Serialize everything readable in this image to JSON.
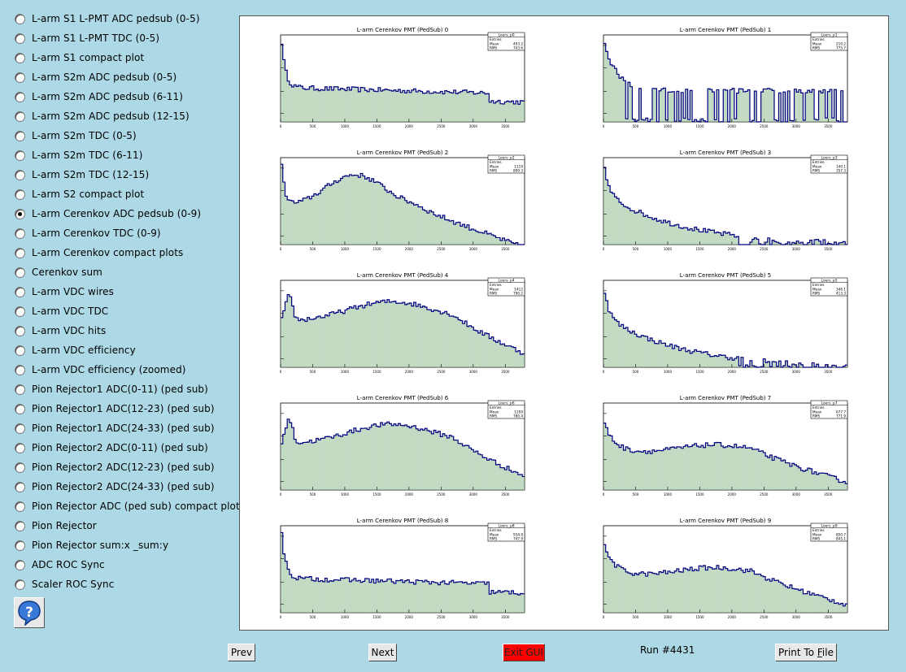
{
  "sidebar": {
    "items": [
      {
        "label": "L-arm S1 L-PMT ADC pedsub (0-5)",
        "checked": false
      },
      {
        "label": "L-arm S1 L-PMT TDC (0-5)",
        "checked": false
      },
      {
        "label": "L-arm S1 compact plot",
        "checked": false
      },
      {
        "label": "L-arm S2m ADC pedsub (0-5)",
        "checked": false
      },
      {
        "label": "L-arm S2m ADC pedsub (6-11)",
        "checked": false
      },
      {
        "label": "L-arm S2m ADC pedsub (12-15)",
        "checked": false
      },
      {
        "label": "L-arm S2m TDC (0-5)",
        "checked": false
      },
      {
        "label": "L-arm S2m TDC (6-11)",
        "checked": false
      },
      {
        "label": "L-arm S2m TDC (12-15)",
        "checked": false
      },
      {
        "label": "L-arm S2 compact plot",
        "checked": false
      },
      {
        "label": "L-arm Cerenkov ADC pedsub (0-9)",
        "checked": true
      },
      {
        "label": "L-arm Cerenkov TDC (0-9)",
        "checked": false
      },
      {
        "label": "L-arm Cerenkov compact plots",
        "checked": false
      },
      {
        "label": "Cerenkov sum",
        "checked": false
      },
      {
        "label": "L-arm VDC wires",
        "checked": false
      },
      {
        "label": "L-arm VDC TDC",
        "checked": false
      },
      {
        "label": "L-arm VDC hits",
        "checked": false
      },
      {
        "label": "L-arm VDC efficiency",
        "checked": false
      },
      {
        "label": "L-arm VDC efficiency (zoomed)",
        "checked": false
      },
      {
        "label": "Pion Rejector1 ADC(0-11) (ped sub)",
        "checked": false
      },
      {
        "label": "Pion Rejector1 ADC(12-23) (ped sub)",
        "checked": false
      },
      {
        "label": "Pion Rejector1 ADC(24-33) (ped sub)",
        "checked": false
      },
      {
        "label": "Pion Rejector2 ADC(0-11) (ped sub)",
        "checked": false
      },
      {
        "label": "Pion Rejector2 ADC(12-23) (ped sub)",
        "checked": false
      },
      {
        "label": "Pion Rejector2 ADC(24-33) (ped sub)",
        "checked": false
      },
      {
        "label": "Pion Rejector ADC (ped sub) compact plot",
        "checked": false
      },
      {
        "label": "Pion Rejector",
        "checked": false
      },
      {
        "label": "Pion Rejector sum:x _sum:y",
        "checked": false
      },
      {
        "label": "ADC ROC Sync",
        "checked": false
      },
      {
        "label": "Scaler ROC Sync",
        "checked": false
      }
    ],
    "help_icon": "question-mark-icon"
  },
  "buttons": {
    "prev": "Prev",
    "next": "Next",
    "exit": "Exit GUI",
    "print": "Print To File",
    "print_prefix": "Print To ",
    "print_underlined": "F",
    "print_suffix": "ile"
  },
  "run_label": "Run #4431",
  "colors": {
    "background": "#add8e6",
    "exit_button": "#ff0000",
    "histogram_line": "#000080",
    "histogram_fill": "#8fbc8f"
  },
  "chart_data": [
    {
      "type": "bar",
      "title": "L-arm Cerenkov PMT (PedSub) 0",
      "legend": {
        "name": "Loers_p0",
        "mean": "493.2",
        "rms": "743.6",
        "stat_labels": [
          "Entries",
          "Mean",
          "RMS"
        ]
      },
      "x_ticks": [
        "0",
        "500",
        "1000",
        "1500",
        "2000",
        "2500",
        "3000",
        "3500"
      ],
      "log_y": true,
      "shape": "flat"
    },
    {
      "type": "bar",
      "title": "L-arm Cerenkov PMT (PedSub) 1",
      "legend": {
        "name": "Loers_p1",
        "mean": "210.2",
        "rms": "775.7",
        "stat_labels": [
          "Entries",
          "Mean",
          "RMS"
        ]
      },
      "x_ticks": [
        "0",
        "500",
        "1000",
        "1500",
        "2000",
        "2500",
        "3000",
        "3500"
      ],
      "log_y": true,
      "shape": "sparse"
    },
    {
      "type": "bar",
      "title": "L-arm Cerenkov PMT (PedSub) 2",
      "legend": {
        "name": "Loers_p2",
        "mean": "1119",
        "rms": "899.3",
        "stat_labels": [
          "Entries",
          "Mean",
          "RMS"
        ]
      },
      "x_ticks": [
        "0",
        "500",
        "1000",
        "1500",
        "2000",
        "2500",
        "3000",
        "3500"
      ],
      "log_y": true,
      "shape": "hump"
    },
    {
      "type": "bar",
      "title": "L-arm Cerenkov PMT (PedSub) 3",
      "legend": {
        "name": "Loers_p3",
        "mean": "140.1",
        "rms": "357.3",
        "stat_labels": [
          "Entries",
          "Mean",
          "RMS"
        ]
      },
      "x_ticks": [
        "0",
        "500",
        "1000",
        "1500",
        "2000",
        "2500",
        "3000",
        "3500"
      ],
      "log_y": true,
      "shape": "decay"
    },
    {
      "type": "bar",
      "title": "L-arm Cerenkov PMT (PedSub) 4",
      "legend": {
        "name": "Loers_p4",
        "mean": "1412",
        "rms": "790.2",
        "stat_labels": [
          "Entries",
          "Mean",
          "RMS"
        ]
      },
      "x_ticks": [
        "0",
        "500",
        "1000",
        "1500",
        "2000",
        "2500",
        "3000",
        "3500"
      ],
      "log_y": true,
      "shape": "broad"
    },
    {
      "type": "bar",
      "title": "L-arm Cerenkov PMT (PedSub) 5",
      "legend": {
        "name": "Loers_p5",
        "mean": "346.1",
        "rms": "413.3",
        "stat_labels": [
          "Entries",
          "Mean",
          "RMS"
        ]
      },
      "x_ticks": [
        "0",
        "500",
        "1000",
        "1500",
        "2000",
        "2500",
        "3000",
        "3500"
      ],
      "log_y": true,
      "shape": "decay"
    },
    {
      "type": "bar",
      "title": "L-arm Cerenkov PMT (PedSub) 6",
      "legend": {
        "name": "Loers_p6",
        "mean": "1209",
        "rms": "780.4",
        "stat_labels": [
          "Entries",
          "Mean",
          "RMS"
        ]
      },
      "x_ticks": [
        "0",
        "500",
        "1000",
        "1500",
        "2000",
        "2500",
        "3000",
        "3500"
      ],
      "log_y": true,
      "shape": "broad"
    },
    {
      "type": "bar",
      "title": "L-arm Cerenkov PMT (PedSub) 7",
      "legend": {
        "name": "Loers_p7",
        "mean": "677.7",
        "rms": "771.9",
        "stat_labels": [
          "Entries",
          "Mean",
          "RMS"
        ]
      },
      "x_ticks": [
        "0",
        "500",
        "1000",
        "1500",
        "2000",
        "2500",
        "3000",
        "3500"
      ],
      "log_y": true,
      "shape": "shoulder"
    },
    {
      "type": "bar",
      "title": "L-arm Cerenkov PMT (PedSub) 8",
      "legend": {
        "name": "Loers_p8",
        "mean": "934.8",
        "rms": "747.9",
        "stat_labels": [
          "Entries",
          "Mean",
          "RMS"
        ]
      },
      "x_ticks": [
        "0",
        "500",
        "1000",
        "1500",
        "2000",
        "2500",
        "3000",
        "3500"
      ],
      "log_y": true,
      "shape": "flat"
    },
    {
      "type": "bar",
      "title": "L-arm Cerenkov PMT (PedSub) 9",
      "legend": {
        "name": "Loers_p9",
        "mean": "850.7",
        "rms": "845.1",
        "stat_labels": [
          "Entries",
          "Mean",
          "RMS"
        ]
      },
      "x_ticks": [
        "0",
        "500",
        "1000",
        "1500",
        "2000",
        "2500",
        "3000",
        "3500"
      ],
      "log_y": true,
      "shape": "shoulder"
    }
  ]
}
